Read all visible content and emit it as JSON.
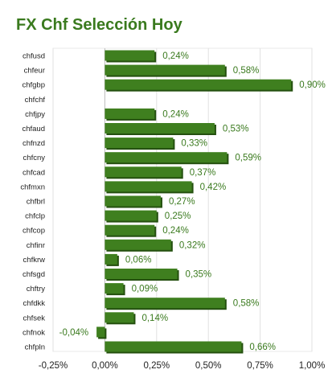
{
  "title": "FX Chf Selección Hoy",
  "chart_data": {
    "type": "bar",
    "orientation": "horizontal",
    "title": "FX Chf Selección Hoy",
    "categories": [
      "chfusd",
      "chfeur",
      "chfgbp",
      "chfchf",
      "chfjpy",
      "chfaud",
      "chfnzd",
      "chfcny",
      "chfcad",
      "chfmxn",
      "chfbrl",
      "chfclp",
      "chfcop",
      "chfinr",
      "chfkrw",
      "chfsgd",
      "chftry",
      "chfdkk",
      "chfsek",
      "chfnok",
      "chfpln"
    ],
    "values": [
      0.24,
      0.58,
      0.9,
      null,
      0.24,
      0.53,
      0.33,
      0.59,
      0.37,
      0.42,
      0.27,
      0.25,
      0.24,
      0.32,
      0.06,
      0.35,
      0.09,
      0.58,
      0.14,
      -0.04,
      0.66
    ],
    "value_labels": [
      "0,24%",
      "0,58%",
      "0,90%",
      "",
      "0,24%",
      "0,53%",
      "0,33%",
      "0,59%",
      "0,37%",
      "0,42%",
      "0,27%",
      "0,25%",
      "0,24%",
      "0,32%",
      "0,06%",
      "0,35%",
      "0,09%",
      "0,58%",
      "0,14%",
      "-0,04%",
      "0,66%"
    ],
    "xlim": [
      -0.25,
      1.0
    ],
    "xticks": [
      -0.25,
      0,
      0.25,
      0.5,
      0.75,
      1.0
    ],
    "xtick_labels": [
      "-0,25%",
      "0,00%",
      "0,25%",
      "0,50%",
      "0,75%",
      "1,00%"
    ],
    "grid": true,
    "bar_color": "#3f7f1f",
    "bar_side_color": "#24500f",
    "label_color": "#3a7a1e"
  }
}
